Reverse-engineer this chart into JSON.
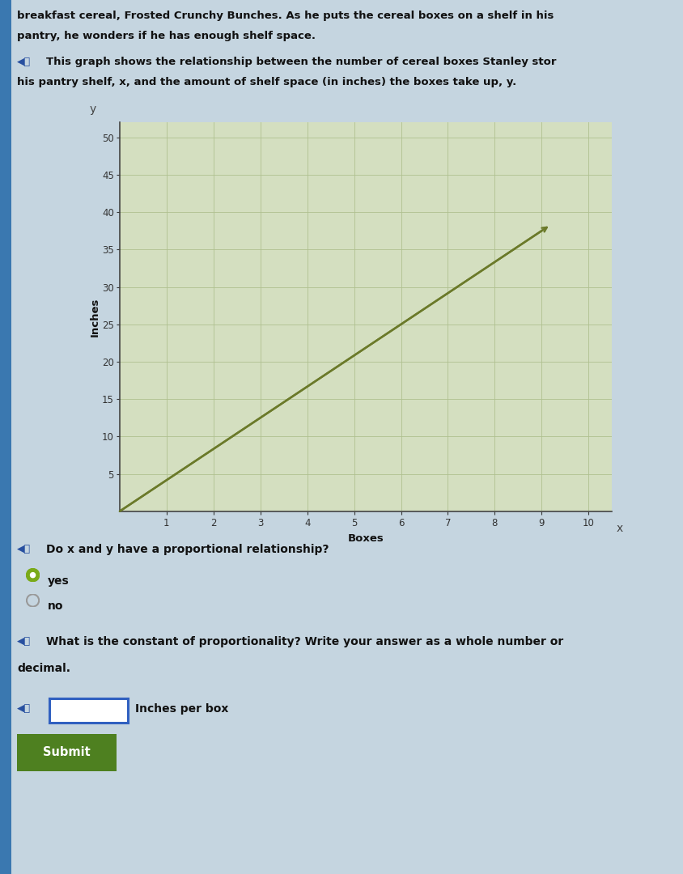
{
  "bg_color": "#c5d5e0",
  "grid_bg": "#d4dfc0",
  "text_color": "#111111",
  "title_lines": [
    "breakfast cereal, Frosted Crunchy Bunches. As he puts the cereal boxes on a shelf in his",
    "pantry, he wonders if he has enough shelf space."
  ],
  "graph_intro_line1": "This graph shows the relationship between the number of cereal boxes Stanley stor",
  "graph_intro_line2": "his pantry shelf, x, and the amount of shelf space (in inches) the boxes take up, y.",
  "xlabel": "Boxes",
  "ylabel": "Inches",
  "xlim": [
    0,
    10.5
  ],
  "ylim": [
    0,
    52
  ],
  "xticks": [
    1,
    2,
    3,
    4,
    5,
    6,
    7,
    8,
    9,
    10
  ],
  "yticks": [
    5,
    10,
    15,
    20,
    25,
    30,
    35,
    40,
    45,
    50
  ],
  "line_x": [
    0,
    9.0
  ],
  "line_y": [
    0,
    37.5
  ],
  "line_color": "#6b7a2a",
  "line_width": 1.8,
  "q1_text": "Do x and y have a proportional relationship?",
  "yes_text": "yes",
  "no_text": "no",
  "q2_text": "What is the constant of proportionality? Write your answer as a whole number or",
  "q2_text2": "decimal.",
  "answer_label": "Inches per box",
  "submit_text": "Submit",
  "submit_color": "#4e8020",
  "radio_yes_color": "#7aaa18",
  "speaker_color": "#2850a0",
  "axis_color": "#444444",
  "tick_color": "#333333",
  "tick_fontsize": 8.5,
  "label_fontsize": 9.5,
  "grid_color": "#b0c090",
  "grid_linewidth": 0.6,
  "left_bar_color": "#3a78b0"
}
